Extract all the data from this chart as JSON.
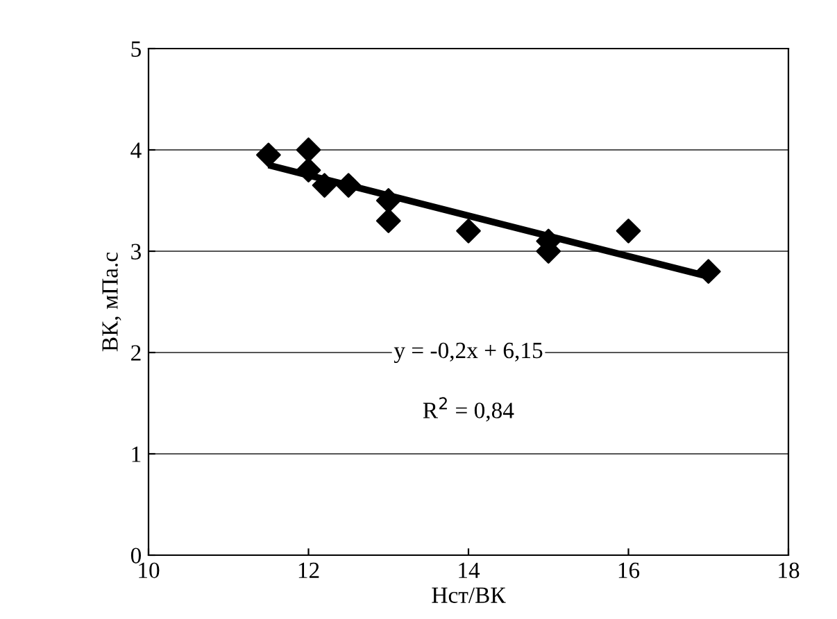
{
  "chart_data": {
    "type": "scatter",
    "xlabel": "Нст/ВК",
    "ylabel": "ВК, мПа.с",
    "xlim": [
      10,
      18
    ],
    "xticks": [
      10,
      12,
      14,
      16,
      18
    ],
    "ylim": [
      0,
      5
    ],
    "yticks": [
      0,
      1,
      2,
      3,
      4,
      5
    ],
    "grid": "y",
    "marker": "diamond",
    "series": [
      {
        "color": "#000000",
        "x": [
          11.5,
          12,
          12,
          12.2,
          12.5,
          13,
          13,
          14,
          15,
          15,
          16,
          17
        ],
        "values": [
          3.95,
          4.0,
          3.8,
          3.65,
          3.65,
          3.5,
          3.3,
          3.2,
          3.1,
          3.0,
          3.2,
          2.8
        ]
      },
      {
        "type": "line",
        "marker": "none",
        "color": "#000000",
        "x": [
          11.5,
          17
        ],
        "values": [
          3.85,
          2.75
        ]
      }
    ],
    "annotations": [
      "y = -0,2x + 6,15",
      "R$^{2}$ = 0,84"
    ]
  }
}
